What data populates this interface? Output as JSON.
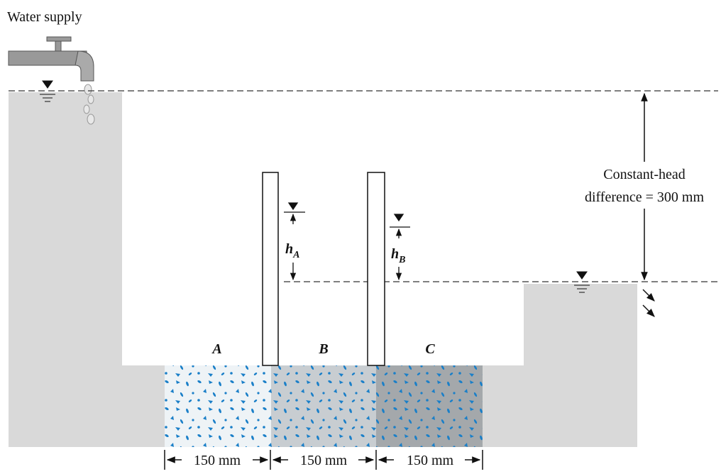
{
  "header": {
    "title": "Water supply"
  },
  "annotation": {
    "line1": "Constant-head",
    "line2": "difference = 300 mm"
  },
  "piezometers": [
    {
      "symbol": "h",
      "subscript": "A"
    },
    {
      "symbol": "h",
      "subscript": "B"
    }
  ],
  "layers": [
    {
      "label": "A",
      "width": "150 mm"
    },
    {
      "label": "B",
      "width": "150 mm"
    },
    {
      "label": "C",
      "width": "150 mm"
    }
  ]
}
